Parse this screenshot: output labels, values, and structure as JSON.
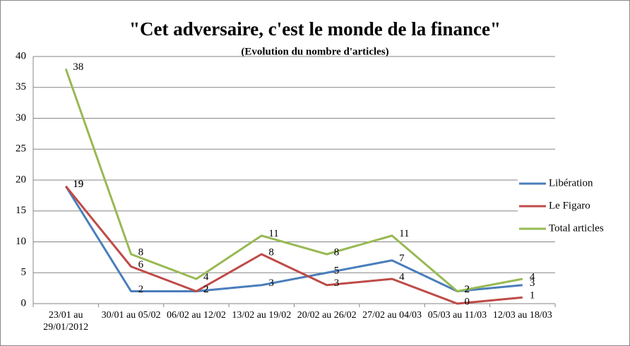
{
  "chart_data": {
    "type": "line",
    "title": "\"Cet adversaire, c'est le monde de la finance\"",
    "subtitle": "(Evolution du nombre d'articles)",
    "categories": [
      "23/01 au 29/01/2012",
      "30/01 au 05/02",
      "06/02 au 12/02",
      "13/02 au 19/02",
      "20/02 au 26/02",
      "27/02 au 04/03",
      "05/03 au 11/03",
      "12/03 au 18/03"
    ],
    "series": [
      {
        "name": "Libération",
        "color": "#4a7ebb",
        "values": [
          19,
          2,
          2,
          3,
          5,
          7,
          2,
          3
        ]
      },
      {
        "name": "Le Figaro",
        "color": "#be4b48",
        "values": [
          19,
          6,
          2,
          8,
          3,
          4,
          0,
          1
        ]
      },
      {
        "name": "Total articles",
        "color": "#98b954",
        "values": [
          38,
          8,
          4,
          11,
          8,
          11,
          2,
          4
        ]
      }
    ],
    "ylim": [
      0,
      40
    ],
    "yticks": [
      0,
      5,
      10,
      15,
      20,
      25,
      30,
      35,
      40
    ],
    "grid": true,
    "legend": "right"
  }
}
